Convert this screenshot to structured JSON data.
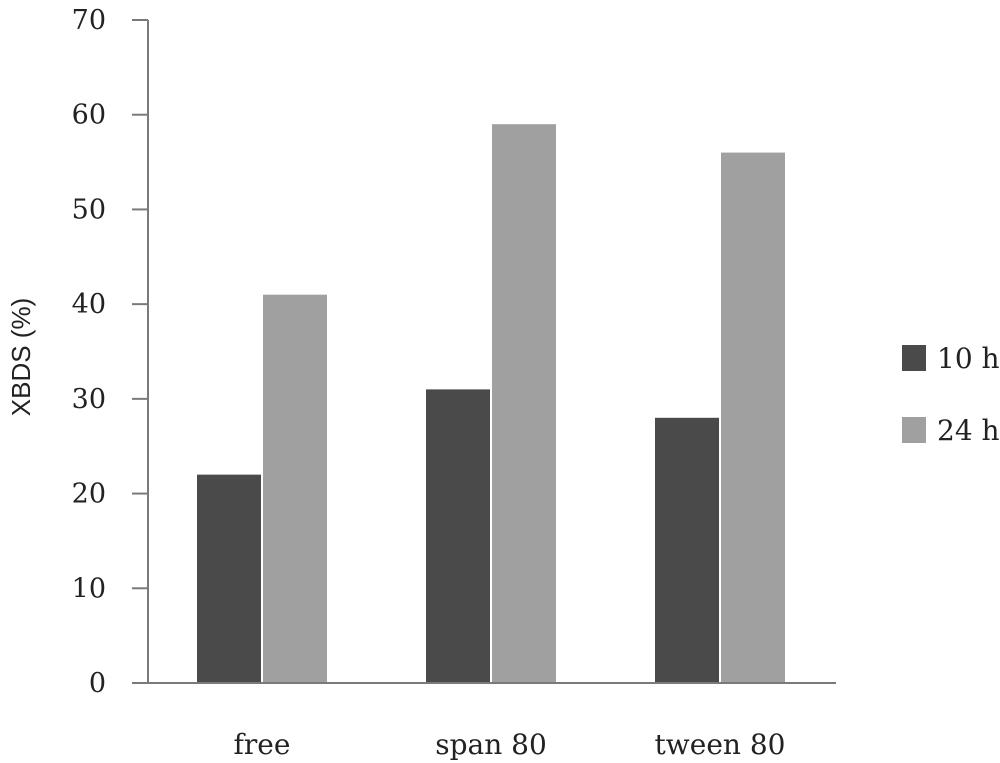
{
  "chart_data": {
    "type": "bar",
    "title": "",
    "xlabel": "",
    "ylabel": "XBDS (%)",
    "ylim": [
      0,
      70
    ],
    "yticks": [
      0,
      10,
      20,
      30,
      40,
      50,
      60,
      70
    ],
    "grid": false,
    "legend_position": "right",
    "categories": [
      "free",
      "span 80",
      "tween 80"
    ],
    "series": [
      {
        "name": "10 h",
        "values": [
          22,
          31,
          28
        ],
        "color": "#4a4a4a"
      },
      {
        "name": "24 h",
        "values": [
          41,
          59,
          56
        ],
        "color": "#a0a0a0"
      }
    ]
  }
}
